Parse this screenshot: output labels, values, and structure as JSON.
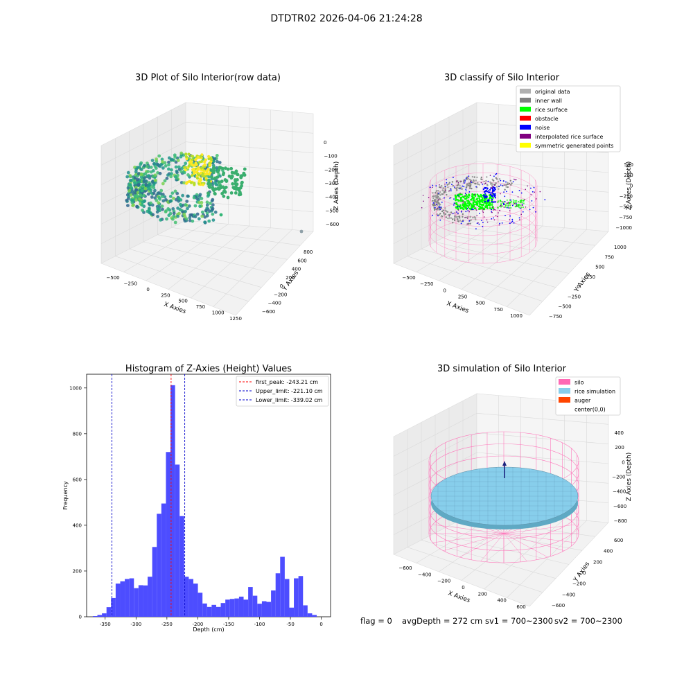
{
  "suptitle": "DTDTR02 2026-04-06 21:24:28",
  "footer": {
    "flag": "flag = 0",
    "avg_depth": "avgDepth = 272 cm",
    "sv1": "sv1 = 700~2300",
    "sv2": "sv2 = 700~2300"
  },
  "colors": {
    "hist_bar": "#4d4dff",
    "peak_line": "#ff0000",
    "limit_line": "#0000cc",
    "silo": "#ff69b4",
    "rice_simulation": "#87ceeb",
    "auger": "#ff4500",
    "viridis_dark": "#31688e",
    "viridis_mid": "#35b779",
    "viridis_yellow": "#fde725"
  },
  "chart_data": [
    {
      "type": "scatter3d",
      "title": "3D Plot of Silo Interior(row data)",
      "xlabel": "X Axies",
      "ylabel": "Y Axies",
      "zlabel": "Z Axies (Depth)",
      "x_ticks": [
        "−500",
        "−250",
        "0",
        "250",
        "500",
        "750",
        "1000",
        "1250"
      ],
      "y_ticks": [
        "−600",
        "−400",
        "−200",
        "0",
        "200",
        "400",
        "600",
        "800"
      ],
      "z_ticks": [
        "0",
        "−100",
        "−200",
        "−300",
        "−400",
        "−500",
        "−600"
      ],
      "colormap": "viridis"
    },
    {
      "type": "scatter3d",
      "title": "3D classify of Silo Interior",
      "xlabel": "X Axies",
      "ylabel": "Y Axies",
      "zlabel": "Z Axies (Depth)",
      "x_ticks": [
        "−500",
        "−250",
        "0",
        "250",
        "500",
        "750",
        "1000"
      ],
      "y_ticks": [
        "−750",
        "−500",
        "−250",
        "0",
        "250",
        "500",
        "750",
        "1000"
      ],
      "z_ticks": [
        "500",
        "250",
        "0",
        "−250",
        "−500",
        "−750",
        "−1000"
      ],
      "legend_position": "top-right",
      "legend": [
        {
          "label": "original data",
          "color": "#b0b0b0"
        },
        {
          "label": "inner wall",
          "color": "#808080"
        },
        {
          "label": "rice surface",
          "color": "#00ff00"
        },
        {
          "label": "obstacle",
          "color": "#ff0000"
        },
        {
          "label": "noise",
          "color": "#0000ff"
        },
        {
          "label": "interpolated rice surface",
          "color": "#800080"
        },
        {
          "label": "symmetric generated points",
          "color": "#ffff00"
        }
      ]
    },
    {
      "type": "bar",
      "title": "Histogram of Z-Axies (Height) Values",
      "xlabel": "Depth (cm)",
      "ylabel": "Frequency",
      "xlim": [
        -380,
        15
      ],
      "ylim": [
        0,
        1060
      ],
      "x_ticks": [
        -350,
        -300,
        -250,
        -200,
        -150,
        -100,
        -50,
        0
      ],
      "y_ticks": [
        0,
        200,
        400,
        600,
        800,
        1000
      ],
      "bin_width": 7.4,
      "bin_starts": [
        -370.0,
        -362.6,
        -355.2,
        -347.8,
        -340.4,
        -333.0,
        -325.6,
        -318.2,
        -310.8,
        -303.4,
        -296.0,
        -288.6,
        -281.2,
        -273.8,
        -266.4,
        -259.0,
        -251.6,
        -244.2,
        -236.8,
        -229.4,
        -222.0,
        -214.6,
        -207.2,
        -199.8,
        -192.4,
        -185.0,
        -177.6,
        -170.2,
        -162.8,
        -155.4,
        -148.0,
        -140.6,
        -133.2,
        -125.8,
        -118.4,
        -111.0,
        -103.6,
        -96.2,
        -88.8,
        -81.4,
        -74.0,
        -66.6,
        -59.2,
        -51.8,
        -44.4,
        -37.0,
        -29.6,
        -22.2,
        -14.8,
        -7.4
      ],
      "values": [
        3,
        8,
        15,
        42,
        82,
        145,
        155,
        165,
        168,
        125,
        138,
        137,
        175,
        305,
        450,
        495,
        720,
        1012,
        665,
        440,
        175,
        165,
        145,
        105,
        58,
        43,
        52,
        43,
        60,
        75,
        78,
        80,
        88,
        75,
        130,
        92,
        57,
        68,
        65,
        115,
        190,
        262,
        165,
        40,
        168,
        178,
        50,
        15,
        8,
        0
      ],
      "legend_position": "top-right",
      "lines": [
        {
          "label": "first_peak: -243.21 cm",
          "x": -243.21,
          "color": "#ff0000"
        },
        {
          "label": "Upper_limit: -221.10 cm",
          "x": -221.1,
          "color": "#0000cc"
        },
        {
          "label": "Lower_limit: -339.02 cm",
          "x": -339.02,
          "color": "#0000cc"
        }
      ]
    },
    {
      "type": "surface3d",
      "title": "3D simulation of Silo Interior",
      "xlabel": "X Axies",
      "ylabel": "Y Axies",
      "zlabel": "Z Axies (Depth)",
      "x_ticks": [
        "−600",
        "−400",
        "−200",
        "0",
        "200",
        "400",
        "600"
      ],
      "y_ticks": [
        "−600",
        "−400",
        "−200",
        "0",
        "200",
        "400",
        "600"
      ],
      "z_ticks": [
        "400",
        "200",
        "0",
        "−200",
        "−400",
        "−600",
        "−800"
      ],
      "legend_position": "top-right",
      "legend": [
        {
          "label": "silo",
          "color": "#ff69b4"
        },
        {
          "label": "rice simulation",
          "color": "#87ceeb"
        },
        {
          "label": "auger",
          "color": "#ff4500"
        },
        {
          "label": "center(0,0)",
          "color": "#ffffff"
        }
      ]
    }
  ]
}
